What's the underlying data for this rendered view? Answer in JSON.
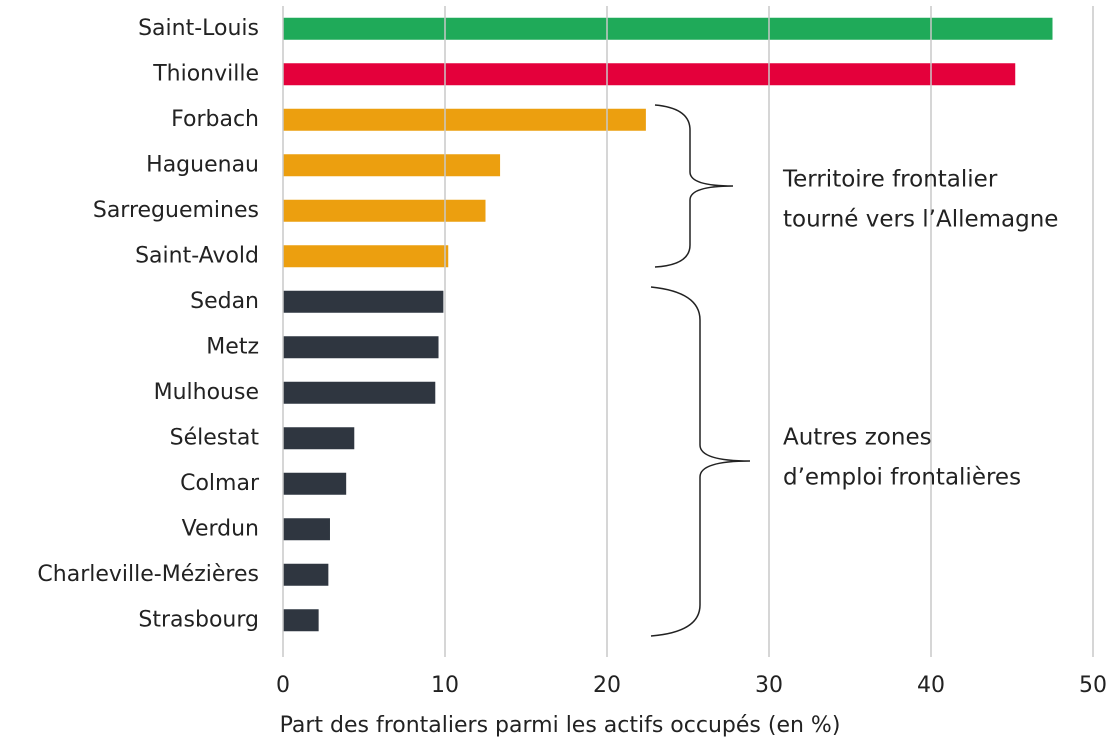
{
  "chart_data": {
    "type": "bar",
    "orientation": "horizontal",
    "categories": [
      "Saint-Louis",
      "Thionville",
      "Forbach",
      "Haguenau",
      "Sarreguemines",
      "Saint-Avold",
      "Sedan",
      "Metz",
      "Mulhouse",
      "Sélestat",
      "Colmar",
      "Verdun",
      "Charleville-Mézières",
      "Strasbourg"
    ],
    "values": [
      47.5,
      45.2,
      22.4,
      13.4,
      12.5,
      10.2,
      9.9,
      9.6,
      9.4,
      4.4,
      3.9,
      2.9,
      2.8,
      2.2
    ],
    "colors": [
      "#1faa59",
      "#e4003b",
      "#ec9f0f",
      "#ec9f0f",
      "#ec9f0f",
      "#ec9f0f",
      "#2f3640",
      "#2f3640",
      "#2f3640",
      "#2f3640",
      "#2f3640",
      "#2f3640",
      "#2f3640",
      "#2f3640"
    ],
    "xlim": [
      0,
      50
    ],
    "xticks": [
      0,
      10,
      20,
      30,
      40,
      50
    ],
    "grid": true,
    "xlabel": "Part des frontaliers parmi les actifs occupés (en %)",
    "annotations": [
      [
        "Territoire frontalier",
        "tourné vers l’Allemagne"
      ],
      [
        "Autres zones",
        "d’emploi frontalières"
      ]
    ]
  }
}
